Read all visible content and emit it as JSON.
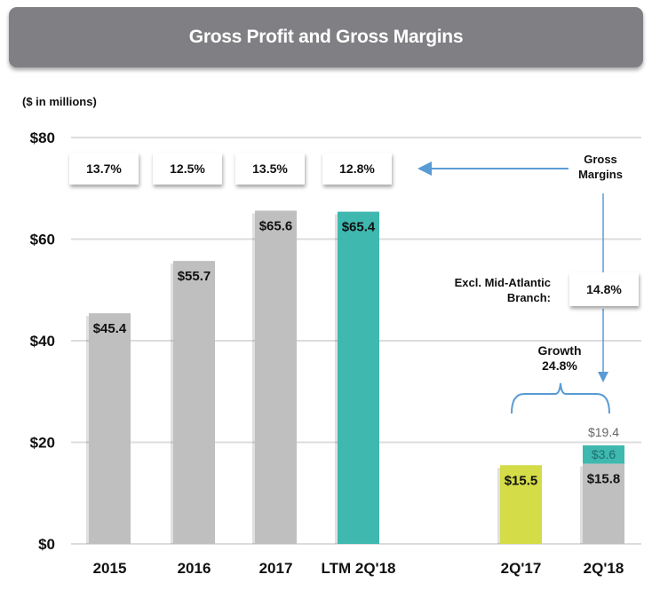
{
  "header": {
    "title": "Gross Profit and Gross Margins"
  },
  "units_note": "($ in millions)",
  "margins": [
    "13.7%",
    "12.5%",
    "13.5%",
    "12.8%"
  ],
  "annotations": {
    "gross_margins": "Gross Margins",
    "excl_label_line1": "Excl. Mid-Atlantic",
    "excl_label_line2": "Branch:",
    "excl_value": "14.8%",
    "growth_line1": "Growth",
    "growth_line2": "24.8%"
  },
  "colors": {
    "gray": "#bfbfbf",
    "teal": "#3fb8b0",
    "lime": "#d4dc47",
    "arrow": "#5b9bd5",
    "title_bg": "#808084"
  },
  "chart_data": {
    "type": "bar",
    "title": "Gross Profit and Gross Margins",
    "ylabel": "($ in millions)",
    "xlabel": "",
    "ylim": [
      0,
      80
    ],
    "yticks": [
      0,
      20,
      40,
      60,
      80
    ],
    "ytick_labels": [
      "$0",
      "$20",
      "$40",
      "$60",
      "$80"
    ],
    "grid": true,
    "categories": [
      "2015",
      "2016",
      "2017",
      "LTM 2Q'18",
      "2Q'17",
      "2Q'18"
    ],
    "series": [
      {
        "name": "Gross Profit",
        "values": [
          45.4,
          55.7,
          65.6,
          65.4,
          15.5,
          15.8
        ],
        "labels": [
          "$45.4",
          "$55.7",
          "$65.6",
          "$65.4",
          "$15.5",
          "$15.8"
        ],
        "colors": [
          "gray",
          "gray",
          "gray",
          "teal",
          "lime",
          "gray"
        ]
      },
      {
        "name": "Mid-Atlantic Branch",
        "values": [
          0,
          0,
          0,
          0,
          0,
          3.6
        ],
        "labels": [
          "",
          "",
          "",
          "",
          "",
          "$3.6"
        ],
        "colors": [
          "teal",
          "teal",
          "teal",
          "teal",
          "teal",
          "teal"
        ]
      }
    ],
    "totals": {
      "2Q'18": {
        "value": 19.4,
        "label": "$19.4"
      }
    },
    "gross_margins": {
      "2015": "13.7%",
      "2016": "12.5%",
      "2017": "13.5%",
      "LTM 2Q'18": "12.8%",
      "2Q'18 excl. Mid-Atlantic Branch": "14.8%"
    },
    "growth": "24.8%"
  }
}
